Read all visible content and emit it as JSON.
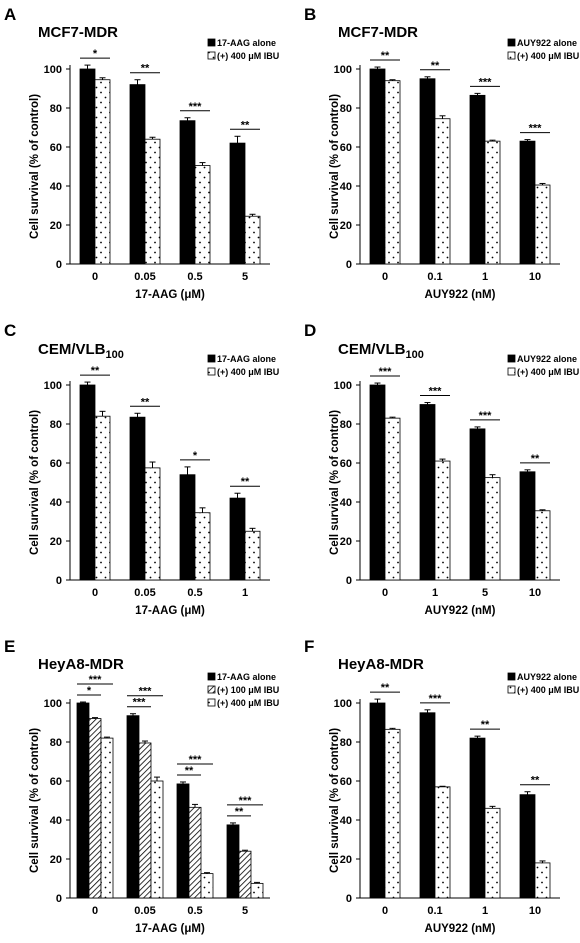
{
  "colors": {
    "black": "#000000",
    "white": "#ffffff"
  },
  "chart_data": [
    {
      "panel_label": "A",
      "type": "bar",
      "title": "MCF7-MDR",
      "xlabel": "17-AAG (μM)",
      "ylabel": "Cell survival (% of control)",
      "ylim": [
        0,
        100
      ],
      "yticks": [
        0,
        20,
        40,
        60,
        80,
        100
      ],
      "categories": [
        "0",
        "0.05",
        "0.5",
        "5"
      ],
      "legend_position": "top-right",
      "series": [
        {
          "name": "17-AAG alone",
          "pattern": "solid",
          "values": [
            100,
            92,
            73.5,
            62
          ],
          "errors": [
            2,
            2.5,
            1.5,
            3.5
          ]
        },
        {
          "name": "(+) 400 μM IBU",
          "pattern": "dots",
          "values": [
            94.5,
            64,
            50.5,
            24.5
          ],
          "errors": [
            1,
            1,
            1.5,
            1
          ]
        }
      ],
      "significance": [
        {
          "category": 0,
          "label": "*"
        },
        {
          "category": 1,
          "label": "**"
        },
        {
          "category": 2,
          "label": "***"
        },
        {
          "category": 3,
          "label": "**"
        }
      ]
    },
    {
      "panel_label": "B",
      "type": "bar",
      "title": "MCF7-MDR",
      "xlabel": "AUY922 (nM)",
      "ylabel": "Cell survival (% of control)",
      "ylim": [
        0,
        100
      ],
      "yticks": [
        0,
        20,
        40,
        60,
        80,
        100
      ],
      "categories": [
        "0",
        "0.1",
        "1",
        "10"
      ],
      "legend_position": "top-right",
      "series": [
        {
          "name": "AUY922 alone",
          "pattern": "solid",
          "values": [
            100,
            95,
            86.5,
            63
          ],
          "errors": [
            1,
            1,
            1,
            0.8
          ]
        },
        {
          "name": "(+) 400 μM IBU",
          "pattern": "dots",
          "values": [
            94,
            74.5,
            63,
            40.5
          ],
          "errors": [
            0.5,
            1.5,
            0.5,
            0.8
          ]
        }
      ],
      "significance": [
        {
          "category": 0,
          "label": "**"
        },
        {
          "category": 1,
          "label": "**"
        },
        {
          "category": 2,
          "label": "***"
        },
        {
          "category": 3,
          "label": "***"
        }
      ]
    },
    {
      "panel_label": "C",
      "type": "bar",
      "title": "CEM/VLB",
      "title_subscript": "100",
      "xlabel": "17-AAG (μM)",
      "ylabel": "Cell survival  (% of control)",
      "ylim": [
        0,
        100
      ],
      "yticks": [
        0,
        20,
        40,
        60,
        80,
        100
      ],
      "categories": [
        "0",
        "0.05",
        "0.5",
        "1"
      ],
      "legend_position": "top-right",
      "series": [
        {
          "name": "17-AAG alone",
          "pattern": "solid",
          "values": [
            100,
            83.5,
            54,
            42
          ],
          "errors": [
            1.5,
            2,
            4,
            2.5
          ]
        },
        {
          "name": "(+) 400 μM IBU",
          "pattern": "dots",
          "values": [
            84,
            57.5,
            34.5,
            25
          ],
          "errors": [
            2.5,
            3,
            2.5,
            1.5
          ]
        }
      ],
      "significance": [
        {
          "category": 0,
          "label": "**"
        },
        {
          "category": 1,
          "label": "**"
        },
        {
          "category": 2,
          "label": "*"
        },
        {
          "category": 3,
          "label": "**"
        }
      ]
    },
    {
      "panel_label": "D",
      "type": "bar",
      "title": "CEM/VLB",
      "title_subscript": "100",
      "xlabel": "AUY922 (nM)",
      "ylabel": "Cell survival (% of control)",
      "ylim": [
        0,
        100
      ],
      "yticks": [
        0,
        20,
        40,
        60,
        80,
        100
      ],
      "categories": [
        "0",
        "1",
        "5",
        "10"
      ],
      "legend_position": "top-right",
      "series": [
        {
          "name": "AUY922 alone",
          "pattern": "solid",
          "values": [
            100,
            90,
            77.5,
            55.5
          ],
          "errors": [
            1,
            1,
            1,
            1
          ]
        },
        {
          "name": "(+) 400 μM IBU",
          "pattern": "dots",
          "values": [
            83,
            61,
            52.5,
            35.5
          ],
          "errors": [
            0.5,
            1,
            1.5,
            0.5
          ]
        }
      ],
      "significance": [
        {
          "category": 0,
          "label": "***"
        },
        {
          "category": 1,
          "label": "***"
        },
        {
          "category": 2,
          "label": "***"
        },
        {
          "category": 3,
          "label": "**"
        }
      ]
    },
    {
      "panel_label": "E",
      "type": "bar",
      "title": "HeyA8-MDR",
      "xlabel": "17-AAG (μM)",
      "ylabel": "Cell survival (% of control)",
      "ylim": [
        0,
        100
      ],
      "yticks": [
        0,
        20,
        40,
        60,
        80,
        100
      ],
      "categories": [
        "0",
        "0.05",
        "0.5",
        "5"
      ],
      "legend_position": "top-right",
      "series": [
        {
          "name": "17-AAG alone",
          "pattern": "solid",
          "values": [
            100,
            93.5,
            58.5,
            37.5
          ],
          "errors": [
            0.5,
            1,
            1,
            1
          ]
        },
        {
          "name": "(+) 100 μM IBU",
          "pattern": "hatch",
          "values": [
            92,
            79.5,
            46.5,
            24
          ],
          "errors": [
            0.5,
            1,
            1.5,
            0.5
          ]
        },
        {
          "name": "(+) 400 μM IBU",
          "pattern": "dots",
          "values": [
            82,
            60,
            12.5,
            7.5
          ],
          "errors": [
            0.5,
            2,
            0.5,
            0.5
          ]
        }
      ],
      "significance": [
        {
          "category": 0,
          "label": "***"
        },
        {
          "category": 0,
          "label": "*"
        },
        {
          "category": 1,
          "label": "***"
        },
        {
          "category": 1,
          "label": "***"
        },
        {
          "category": 2,
          "label": "***"
        },
        {
          "category": 2,
          "label": "**"
        },
        {
          "category": 3,
          "label": "***"
        },
        {
          "category": 3,
          "label": "**"
        }
      ]
    },
    {
      "panel_label": "F",
      "type": "bar",
      "title": "HeyA8-MDR",
      "xlabel": "AUY922 (nM)",
      "ylabel": "Cell survival (% of control)",
      "ylim": [
        0,
        100
      ],
      "yticks": [
        0,
        20,
        40,
        60,
        80,
        100
      ],
      "categories": [
        "0",
        "0.1",
        "1",
        "10"
      ],
      "legend_position": "top-right",
      "series": [
        {
          "name": "AUY922 alone",
          "pattern": "solid",
          "values": [
            100,
            95,
            82,
            53
          ],
          "errors": [
            2,
            1.5,
            1,
            1.5
          ]
        },
        {
          "name": "(+) 400 μM IBU",
          "pattern": "dots",
          "values": [
            86.5,
            57,
            46,
            18
          ],
          "errors": [
            0.5,
            0.3,
            1,
            1
          ]
        }
      ],
      "significance": [
        {
          "category": 0,
          "label": "**"
        },
        {
          "category": 1,
          "label": "***"
        },
        {
          "category": 2,
          "label": "**"
        },
        {
          "category": 3,
          "label": "**"
        }
      ]
    }
  ]
}
